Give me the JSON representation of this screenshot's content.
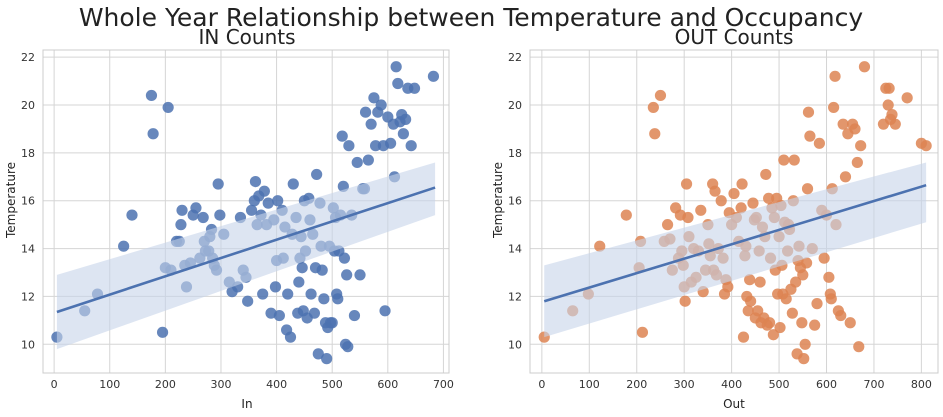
{
  "suptitle": "Whole Year Relationship between Temperature and Occupancy",
  "chart_data": [
    {
      "type": "scatter",
      "title": "IN Counts",
      "xlabel": "In",
      "ylabel": "Temperature",
      "xlim": [
        -20,
        710
      ],
      "ylim": [
        8.8,
        22.3
      ],
      "xticks": [
        0,
        100,
        200,
        300,
        400,
        500,
        600,
        700
      ],
      "yticks": [
        10,
        12,
        14,
        16,
        18,
        20,
        22
      ],
      "grid": true,
      "point_color": "#4c72b0",
      "fit_color": "#4c72b0",
      "band_color": "#c6d3ea",
      "regression": {
        "x": [
          5,
          685
        ],
        "y": [
          11.35,
          16.55
        ]
      },
      "ci_band": {
        "x": [
          5,
          685
        ],
        "lower": [
          9.8,
          15.4
        ],
        "upper": [
          12.9,
          17.6
        ]
      },
      "points": [
        [
          5,
          10.3
        ],
        [
          55,
          11.4
        ],
        [
          78,
          12.1
        ],
        [
          125,
          14.1
        ],
        [
          140,
          15.4
        ],
        [
          175,
          20.4
        ],
        [
          178,
          18.8
        ],
        [
          195,
          10.5
        ],
        [
          200,
          13.2
        ],
        [
          205,
          19.9
        ],
        [
          210,
          13.1
        ],
        [
          220,
          14.3
        ],
        [
          225,
          14.3
        ],
        [
          228,
          15.0
        ],
        [
          230,
          15.6
        ],
        [
          235,
          13.3
        ],
        [
          238,
          12.4
        ],
        [
          245,
          13.4
        ],
        [
          250,
          15.4
        ],
        [
          255,
          15.7
        ],
        [
          262,
          13.6
        ],
        [
          268,
          15.3
        ],
        [
          270,
          14.3
        ],
        [
          272,
          13.9
        ],
        [
          278,
          13.9
        ],
        [
          280,
          14.5
        ],
        [
          283,
          14.8
        ],
        [
          285,
          13.6
        ],
        [
          288,
          13.3
        ],
        [
          292,
          13.1
        ],
        [
          295,
          16.7
        ],
        [
          298,
          15.4
        ],
        [
          305,
          14.6
        ],
        [
          315,
          12.6
        ],
        [
          320,
          12.2
        ],
        [
          330,
          12.4
        ],
        [
          335,
          15.3
        ],
        [
          340,
          13.1
        ],
        [
          345,
          12.8
        ],
        [
          348,
          11.8
        ],
        [
          355,
          15.6
        ],
        [
          360,
          16.0
        ],
        [
          362,
          16.8
        ],
        [
          365,
          15.0
        ],
        [
          368,
          16.2
        ],
        [
          372,
          15.4
        ],
        [
          375,
          12.1
        ],
        [
          378,
          16.4
        ],
        [
          382,
          15.0
        ],
        [
          385,
          15.9
        ],
        [
          390,
          11.3
        ],
        [
          395,
          15.2
        ],
        [
          398,
          12.4
        ],
        [
          400,
          13.5
        ],
        [
          402,
          16.0
        ],
        [
          405,
          11.2
        ],
        [
          410,
          15.6
        ],
        [
          412,
          13.6
        ],
        [
          415,
          14.9
        ],
        [
          418,
          10.6
        ],
        [
          420,
          12.1
        ],
        [
          425,
          10.3
        ],
        [
          428,
          14.6
        ],
        [
          430,
          16.7
        ],
        [
          435,
          15.3
        ],
        [
          438,
          11.3
        ],
        [
          440,
          12.6
        ],
        [
          442,
          13.6
        ],
        [
          444,
          14.5
        ],
        [
          446,
          13.2
        ],
        [
          448,
          11.4
        ],
        [
          450,
          16.0
        ],
        [
          452,
          13.9
        ],
        [
          455,
          11.1
        ],
        [
          458,
          16.1
        ],
        [
          460,
          15.2
        ],
        [
          462,
          12.1
        ],
        [
          465,
          14.6
        ],
        [
          468,
          11.3
        ],
        [
          470,
          13.2
        ],
        [
          472,
          17.1
        ],
        [
          475,
          9.6
        ],
        [
          478,
          15.9
        ],
        [
          480,
          14.1
        ],
        [
          482,
          13.1
        ],
        [
          485,
          11.9
        ],
        [
          488,
          10.9
        ],
        [
          490,
          9.4
        ],
        [
          492,
          10.7
        ],
        [
          495,
          14.1
        ],
        [
          497,
          10.9
        ],
        [
          500,
          10.9
        ],
        [
          502,
          15.7
        ],
        [
          504,
          13.9
        ],
        [
          506,
          15.3
        ],
        [
          508,
          12.1
        ],
        [
          510,
          11.9
        ],
        [
          512,
          13.9
        ],
        [
          515,
          15.4
        ],
        [
          518,
          18.7
        ],
        [
          520,
          16.6
        ],
        [
          522,
          13.6
        ],
        [
          524,
          10.0
        ],
        [
          526,
          12.9
        ],
        [
          528,
          9.9
        ],
        [
          530,
          18.3
        ],
        [
          535,
          15.4
        ],
        [
          540,
          11.2
        ],
        [
          545,
          17.6
        ],
        [
          550,
          12.9
        ],
        [
          555,
          16.5
        ],
        [
          558,
          16.5
        ],
        [
          560,
          19.7
        ],
        [
          565,
          17.7
        ],
        [
          570,
          19.2
        ],
        [
          575,
          20.3
        ],
        [
          578,
          18.3
        ],
        [
          582,
          19.7
        ],
        [
          588,
          20.0
        ],
        [
          592,
          18.3
        ],
        [
          595,
          11.4
        ],
        [
          600,
          19.5
        ],
        [
          605,
          18.4
        ],
        [
          610,
          19.2
        ],
        [
          612,
          17.0
        ],
        [
          615,
          21.6
        ],
        [
          618,
          20.9
        ],
        [
          622,
          19.3
        ],
        [
          625,
          19.6
        ],
        [
          628,
          18.8
        ],
        [
          632,
          19.4
        ],
        [
          636,
          20.7
        ],
        [
          642,
          18.3
        ],
        [
          648,
          20.7
        ],
        [
          682,
          21.2
        ]
      ]
    },
    {
      "type": "scatter",
      "title": "OUT Counts",
      "xlabel": "Out",
      "ylabel": "Temperature",
      "xlim": [
        -25,
        835
      ],
      "ylim": [
        8.8,
        22.3
      ],
      "xticks": [
        0,
        100,
        200,
        300,
        400,
        500,
        600,
        700,
        800
      ],
      "yticks": [
        10,
        12,
        14,
        16,
        18,
        20,
        22
      ],
      "grid": true,
      "point_color": "#dd8452",
      "fit_color": "#4c72b0",
      "band_color": "#c6d3ea",
      "regression": {
        "x": [
          5,
          810
        ],
        "y": [
          11.8,
          16.65
        ]
      },
      "ci_band": {
        "x": [
          5,
          810
        ],
        "lower": [
          10.3,
          15.1
        ],
        "upper": [
          13.3,
          17.6
        ]
      },
      "points": [
        [
          5,
          10.3
        ],
        [
          65,
          11.4
        ],
        [
          98,
          12.1
        ],
        [
          122,
          14.1
        ],
        [
          178,
          15.4
        ],
        [
          205,
          13.2
        ],
        [
          208,
          14.3
        ],
        [
          212,
          10.5
        ],
        [
          235,
          19.9
        ],
        [
          238,
          18.8
        ],
        [
          250,
          20.4
        ],
        [
          258,
          14.3
        ],
        [
          265,
          15.0
        ],
        [
          270,
          14.4
        ],
        [
          275,
          13.1
        ],
        [
          282,
          15.7
        ],
        [
          288,
          13.6
        ],
        [
          292,
          15.4
        ],
        [
          295,
          13.9
        ],
        [
          298,
          13.3
        ],
        [
          300,
          12.4
        ],
        [
          302,
          11.8
        ],
        [
          305,
          16.7
        ],
        [
          308,
          15.3
        ],
        [
          310,
          14.5
        ],
        [
          315,
          12.6
        ],
        [
          320,
          14.0
        ],
        [
          325,
          12.8
        ],
        [
          330,
          13.9
        ],
        [
          335,
          15.6
        ],
        [
          340,
          12.2
        ],
        [
          345,
          13.1
        ],
        [
          350,
          15.0
        ],
        [
          352,
          14.2
        ],
        [
          355,
          13.7
        ],
        [
          360,
          16.7
        ],
        [
          362,
          13.1
        ],
        [
          365,
          16.4
        ],
        [
          368,
          12.9
        ],
        [
          372,
          14.0
        ],
        [
          378,
          16.0
        ],
        [
          382,
          13.6
        ],
        [
          385,
          12.1
        ],
        [
          388,
          12.7
        ],
        [
          392,
          12.4
        ],
        [
          395,
          15.5
        ],
        [
          400,
          15.0
        ],
        [
          405,
          16.3
        ],
        [
          410,
          15.3
        ],
        [
          415,
          14.3
        ],
        [
          420,
          15.7
        ],
        [
          422,
          16.7
        ],
        [
          425,
          10.3
        ],
        [
          428,
          13.7
        ],
        [
          430,
          14.1
        ],
        [
          432,
          12.0
        ],
        [
          435,
          11.4
        ],
        [
          438,
          12.7
        ],
        [
          440,
          11.8
        ],
        [
          445,
          15.9
        ],
        [
          448,
          15.2
        ],
        [
          450,
          11.1
        ],
        [
          452,
          15.3
        ],
        [
          455,
          11.4
        ],
        [
          458,
          13.9
        ],
        [
          460,
          12.6
        ],
        [
          462,
          10.9
        ],
        [
          465,
          14.9
        ],
        [
          468,
          11.1
        ],
        [
          470,
          14.5
        ],
        [
          472,
          17.1
        ],
        [
          475,
          10.8
        ],
        [
          478,
          16.1
        ],
        [
          480,
          10.9
        ],
        [
          482,
          13.6
        ],
        [
          485,
          15.7
        ],
        [
          488,
          10.4
        ],
        [
          490,
          15.3
        ],
        [
          492,
          13.1
        ],
        [
          495,
          16.1
        ],
        [
          497,
          12.1
        ],
        [
          500,
          14.5
        ],
        [
          502,
          10.7
        ],
        [
          504,
          15.8
        ],
        [
          506,
          13.3
        ],
        [
          508,
          12.1
        ],
        [
          510,
          17.7
        ],
        [
          512,
          15.1
        ],
        [
          515,
          11.9
        ],
        [
          518,
          13.9
        ],
        [
          520,
          15.0
        ],
        [
          522,
          14.8
        ],
        [
          525,
          12.3
        ],
        [
          528,
          11.3
        ],
        [
          530,
          16.0
        ],
        [
          532,
          17.7
        ],
        [
          535,
          12.6
        ],
        [
          538,
          9.6
        ],
        [
          540,
          13.5
        ],
        [
          542,
          14.1
        ],
        [
          545,
          13.2
        ],
        [
          548,
          10.9
        ],
        [
          550,
          12.9
        ],
        [
          552,
          9.4
        ],
        [
          555,
          10.0
        ],
        [
          558,
          13.4
        ],
        [
          560,
          16.5
        ],
        [
          562,
          19.7
        ],
        [
          565,
          18.7
        ],
        [
          570,
          14.0
        ],
        [
          575,
          10.8
        ],
        [
          580,
          11.7
        ],
        [
          585,
          18.4
        ],
        [
          590,
          15.6
        ],
        [
          595,
          13.6
        ],
        [
          600,
          15.4
        ],
        [
          605,
          12.8
        ],
        [
          608,
          12.1
        ],
        [
          610,
          11.9
        ],
        [
          612,
          16.5
        ],
        [
          615,
          19.9
        ],
        [
          618,
          21.2
        ],
        [
          620,
          15.0
        ],
        [
          625,
          11.4
        ],
        [
          630,
          11.2
        ],
        [
          635,
          19.2
        ],
        [
          640,
          17.0
        ],
        [
          645,
          18.8
        ],
        [
          650,
          10.9
        ],
        [
          655,
          19.2
        ],
        [
          660,
          19.0
        ],
        [
          665,
          17.6
        ],
        [
          668,
          9.9
        ],
        [
          672,
          18.3
        ],
        [
          680,
          21.6
        ],
        [
          720,
          19.2
        ],
        [
          725,
          20.7
        ],
        [
          730,
          20.0
        ],
        [
          732,
          20.7
        ],
        [
          735,
          19.4
        ],
        [
          738,
          19.6
        ],
        [
          745,
          19.2
        ],
        [
          770,
          20.3
        ],
        [
          800,
          18.4
        ],
        [
          810,
          18.3
        ]
      ]
    }
  ]
}
